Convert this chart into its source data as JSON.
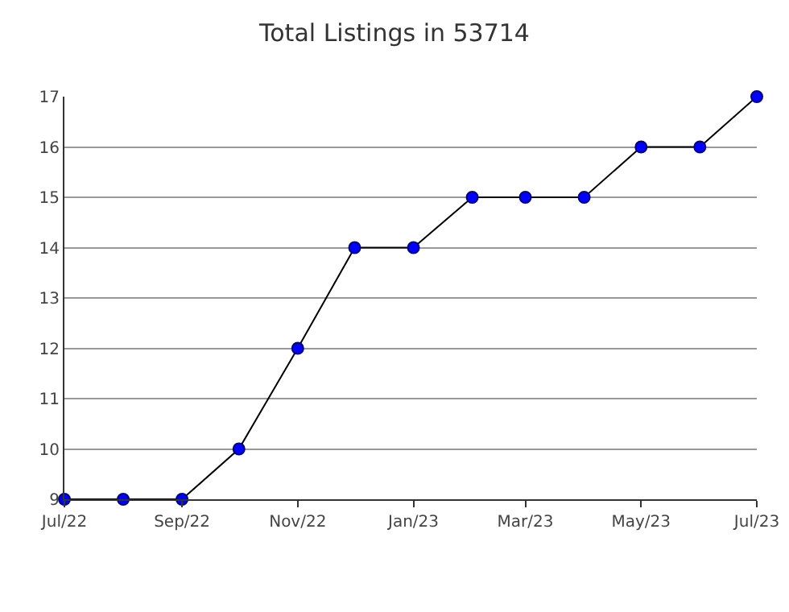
{
  "chart_data": {
    "type": "line",
    "title": "Total Listings in 53714",
    "x": [
      "2022-07",
      "2022-08",
      "2022-09",
      "2022-10",
      "2022-11",
      "2022-12",
      "2023-01",
      "2023-02",
      "2023-03",
      "2023-04",
      "2023-05",
      "2023-06",
      "2023-07"
    ],
    "series": [
      {
        "color": "#0000ff",
        "values": [
          9,
          9,
          9,
          10,
          12,
          14,
          14,
          15,
          15,
          15,
          16,
          16,
          17
        ]
      }
    ],
    "xlim": [
      "2022-07",
      "2023-07"
    ],
    "xticks": [
      {
        "value": "2022-07",
        "label": "Jul/22"
      },
      {
        "value": "2022-09",
        "label": "Sep/22"
      },
      {
        "value": "2022-11",
        "label": "Nov/22"
      },
      {
        "value": "2023-01",
        "label": "Jan/23"
      },
      {
        "value": "2023-03",
        "label": "Mar/23"
      },
      {
        "value": "2023-05",
        "label": "May/23"
      },
      {
        "value": "2023-07",
        "label": "Jul/23"
      }
    ],
    "ylim": [
      9,
      17
    ],
    "yticks": [
      9,
      10,
      11,
      12,
      13,
      14,
      15,
      16,
      17
    ],
    "grid": "y",
    "marker": "circle",
    "line_style": "solid"
  }
}
